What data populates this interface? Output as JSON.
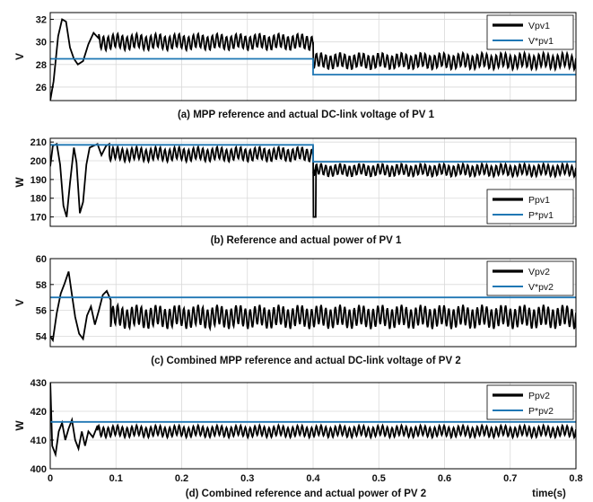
{
  "colors": {
    "actual": "#000000",
    "reference": "#1f77b4",
    "grid": "#d9d9d9"
  },
  "chart_data": [
    {
      "type": "line",
      "caption": "(a) MPP reference and actual DC-link voltage of PV 1",
      "ylabel": "V",
      "ylim": [
        24.8,
        32.6
      ],
      "yticks": [
        "26",
        "28",
        "30",
        "32"
      ],
      "xlim": [
        0,
        0.8
      ],
      "xticks": [],
      "grid": true,
      "legend_position": "top-right",
      "series": [
        {
          "name": "Vpv1",
          "kind": "oscillating",
          "transient": [
            [
              0,
              24.8
            ],
            [
              0.005,
              26.5
            ],
            [
              0.012,
              30.5
            ],
            [
              0.018,
              32.0
            ],
            [
              0.024,
              31.8
            ],
            [
              0.03,
              29.5
            ],
            [
              0.036,
              28.5
            ],
            [
              0.042,
              28.0
            ],
            [
              0.05,
              28.3
            ],
            [
              0.058,
              29.8
            ],
            [
              0.066,
              30.8
            ],
            [
              0.074,
              30.3
            ]
          ],
          "segments": [
            {
              "from": 0.074,
              "to": 0.4,
              "mean": 30.0,
              "amp": 0.6
            },
            {
              "from": 0.4,
              "to": 0.8,
              "mean": 28.3,
              "amp": 0.6
            }
          ],
          "steps": [
            [
              0.4,
              30.0,
              27.6
            ]
          ]
        },
        {
          "name": "V*pv1",
          "kind": "step",
          "points": [
            [
              0,
              28.5
            ],
            [
              0.4,
              28.5
            ],
            [
              0.4,
              27.1
            ],
            [
              0.8,
              27.1
            ]
          ]
        }
      ]
    },
    {
      "type": "line",
      "caption": "(b) Reference and actual power of PV 1",
      "ylabel": "W",
      "ylim": [
        165,
        212
      ],
      "yticks": [
        "170",
        "180",
        "190",
        "200",
        "210"
      ],
      "xlim": [
        0,
        0.8
      ],
      "xticks": [],
      "grid": true,
      "legend_position": "bottom-right",
      "series": [
        {
          "name": "Ppv1",
          "kind": "oscillating",
          "transient": [
            [
              0,
              197
            ],
            [
              0.004,
              208
            ],
            [
              0.01,
              209
            ],
            [
              0.015,
              198
            ],
            [
              0.02,
              176
            ],
            [
              0.025,
              170
            ],
            [
              0.03,
              188
            ],
            [
              0.036,
              207
            ],
            [
              0.04,
              199
            ],
            [
              0.045,
              172
            ],
            [
              0.05,
              178
            ],
            [
              0.055,
              198
            ],
            [
              0.06,
              207
            ],
            [
              0.066,
              208
            ],
            [
              0.072,
              209
            ],
            [
              0.078,
              203
            ],
            [
              0.085,
              208
            ],
            [
              0.09,
              209
            ]
          ],
          "segments": [
            {
              "from": 0.09,
              "to": 0.4,
              "mean": 203.5,
              "amp": 3.2
            },
            {
              "from": 0.4,
              "to": 0.8,
              "mean": 195.0,
              "amp": 2.8
            }
          ],
          "steps": [
            [
              0.4,
              208,
              170
            ],
            [
              0.404,
              170,
              196
            ]
          ]
        },
        {
          "name": "P*pv1",
          "kind": "step",
          "points": [
            [
              0,
              208.5
            ],
            [
              0.4,
              208.5
            ],
            [
              0.4,
              199.5
            ],
            [
              0.8,
              199.5
            ]
          ]
        }
      ]
    },
    {
      "type": "line",
      "caption": "(c) Combined MPP reference and actual DC-link voltage of PV 2",
      "ylabel": "V",
      "ylim": [
        53.2,
        60
      ],
      "yticks": [
        "54",
        "56",
        "58",
        "60"
      ],
      "xlim": [
        0,
        0.8
      ],
      "xticks": [],
      "grid": true,
      "legend_position": "top-right",
      "series": [
        {
          "name": "Vpv2",
          "kind": "oscillating",
          "transient": [
            [
              0,
              54.0
            ],
            [
              0.004,
              53.7
            ],
            [
              0.01,
              55.8
            ],
            [
              0.016,
              57.3
            ],
            [
              0.022,
              58.1
            ],
            [
              0.028,
              59.0
            ],
            [
              0.033,
              57.2
            ],
            [
              0.038,
              55.5
            ],
            [
              0.044,
              54.2
            ],
            [
              0.05,
              53.8
            ],
            [
              0.056,
              55.6
            ],
            [
              0.062,
              56.3
            ],
            [
              0.068,
              54.9
            ],
            [
              0.074,
              56.0
            ],
            [
              0.08,
              57.2
            ],
            [
              0.086,
              57.5
            ],
            [
              0.092,
              56.8
            ]
          ],
          "segments": [
            {
              "from": 0.092,
              "to": 0.8,
              "mean": 55.5,
              "amp": 0.75
            }
          ],
          "steps": []
        },
        {
          "name": "V*pv2",
          "kind": "step",
          "points": [
            [
              0,
              57.0
            ],
            [
              0.8,
              57.0
            ]
          ]
        }
      ]
    },
    {
      "type": "line",
      "caption": "(d) Combined reference and actual power of PV 2",
      "ylabel": "W",
      "ylim": [
        400,
        430
      ],
      "yticks": [
        "400",
        "410",
        "420",
        "430"
      ],
      "xlim": [
        0,
        0.8
      ],
      "xticks": [
        "0",
        "0.1",
        "0.2",
        "0.3",
        "0.4",
        "0.5",
        "0.6",
        "0.7",
        "0.8"
      ],
      "xlabel": "time(s)",
      "grid": true,
      "legend_position": "top-right",
      "series": [
        {
          "name": "Ppv2",
          "kind": "oscillating",
          "transient": [
            [
              0,
              431
            ],
            [
              0.003,
              408
            ],
            [
              0.008,
              405
            ],
            [
              0.013,
              413
            ],
            [
              0.018,
              416
            ],
            [
              0.023,
              410
            ],
            [
              0.028,
              414
            ],
            [
              0.033,
              417
            ],
            [
              0.038,
              410
            ],
            [
              0.043,
              407
            ],
            [
              0.048,
              413
            ],
            [
              0.053,
              408
            ],
            [
              0.058,
              413
            ],
            [
              0.065,
              411
            ],
            [
              0.072,
              415
            ]
          ],
          "segments": [
            {
              "from": 0.072,
              "to": 0.8,
              "mean": 413.0,
              "amp": 1.7
            }
          ],
          "steps": []
        },
        {
          "name": "P*pv2",
          "kind": "step",
          "points": [
            [
              0,
              416.3
            ],
            [
              0.8,
              416.3
            ]
          ]
        }
      ]
    }
  ]
}
